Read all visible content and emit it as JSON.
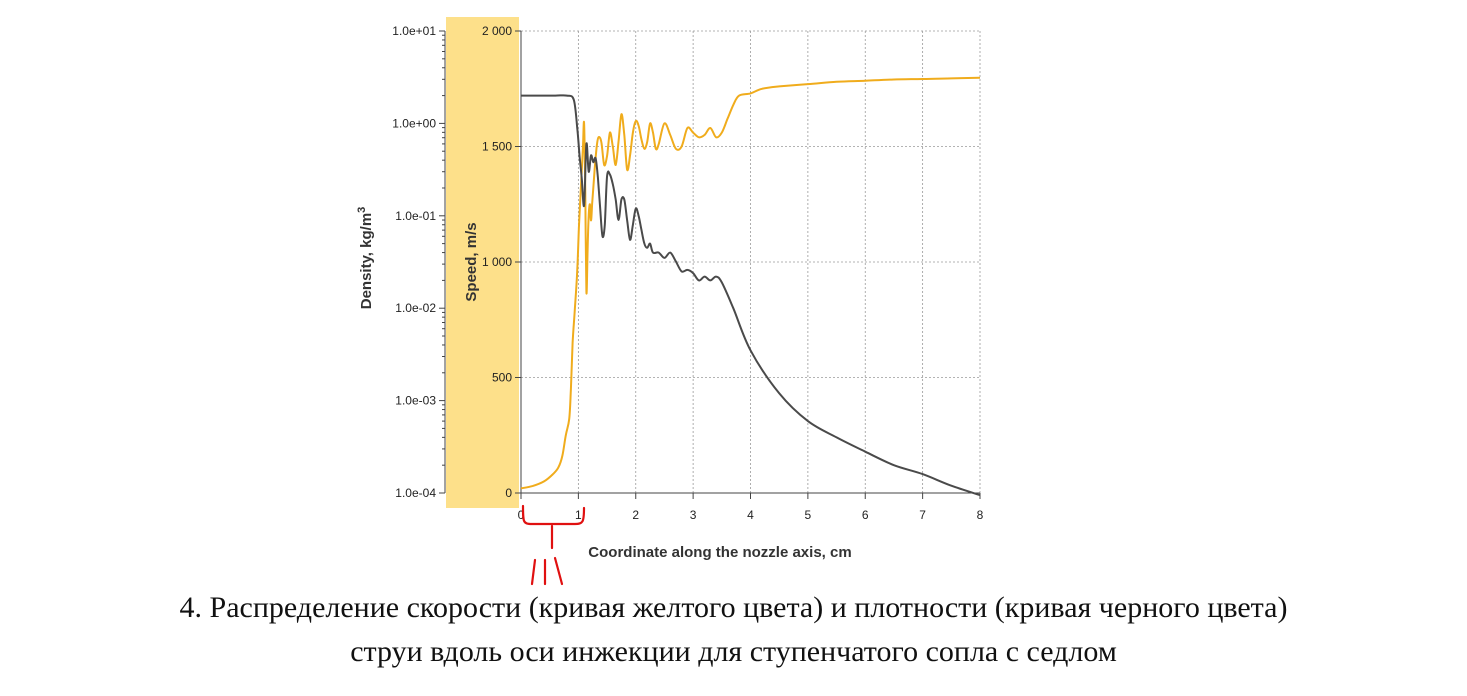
{
  "caption": {
    "line1": "4. Распределение скорости (кривая желтого цвета) и плотности (кривая черного цвета)",
    "line2": "струи вдоль оси инжекции для ступенчатого сопла с седлом"
  },
  "colors": {
    "speed": "#f0ac1c",
    "density": "#4a4a4a",
    "highlight": "#fde08a",
    "annotation": "#e01010"
  },
  "chart_data": {
    "type": "line",
    "title": "",
    "xlabel": "Coordinate along the nozzle axis, cm",
    "ylabel_left": "Density, kg/m³",
    "ylabel_right": "Speed, m/s",
    "xlim": [
      0,
      8
    ],
    "ylim_left": [
      0.0001,
      10
    ],
    "ylim_right": [
      0,
      2000
    ],
    "left_scale": "log",
    "x_ticks": [
      "0",
      "1",
      "2",
      "3",
      "4",
      "5",
      "6",
      "7",
      "8"
    ],
    "left_ticks": [
      "1.0e+01",
      "1.0e+00",
      "1.0e-01",
      "1.0e-02",
      "1.0e-03",
      "1.0e-04"
    ],
    "right_ticks": [
      "2 000",
      "1 500",
      "1 000",
      "500",
      "0"
    ],
    "grid": true,
    "series": [
      {
        "name": "",
        "axis": "right",
        "x": [
          0,
          0.2,
          0.4,
          0.55,
          0.65,
          0.72,
          0.78,
          0.84,
          0.87,
          0.9,
          0.94,
          0.98,
          1.01,
          1.05,
          1.08,
          1.1,
          1.12,
          1.14,
          1.16,
          1.18,
          1.2,
          1.22,
          1.24,
          1.26,
          1.29,
          1.32,
          1.35,
          1.4,
          1.45,
          1.5,
          1.55,
          1.6,
          1.65,
          1.7,
          1.75,
          1.8,
          1.85,
          1.9,
          1.95,
          2.0,
          2.05,
          2.1,
          2.15,
          2.2,
          2.25,
          2.3,
          2.35,
          2.4,
          2.5,
          2.6,
          2.7,
          2.8,
          2.9,
          3.0,
          3.1,
          3.2,
          3.3,
          3.4,
          3.5,
          3.6,
          3.7,
          3.8,
          4.0,
          4.2,
          4.5,
          5.0,
          5.5,
          6.0,
          6.5,
          7.0,
          7.5,
          8.0
        ],
        "y": [
          20,
          30,
          50,
          80,
          110,
          160,
          250,
          320,
          450,
          650,
          800,
          960,
          1150,
          1350,
          1500,
          1600,
          1300,
          870,
          1050,
          1200,
          1250,
          1180,
          1250,
          1320,
          1420,
          1500,
          1540,
          1520,
          1420,
          1460,
          1560,
          1500,
          1420,
          1520,
          1640,
          1550,
          1400,
          1460,
          1560,
          1610,
          1590,
          1530,
          1490,
          1520,
          1600,
          1560,
          1490,
          1510,
          1600,
          1550,
          1490,
          1500,
          1580,
          1560,
          1540,
          1550,
          1580,
          1540,
          1560,
          1620,
          1680,
          1720,
          1730,
          1750,
          1760,
          1770,
          1780,
          1785,
          1790,
          1792,
          1795,
          1798
        ]
      },
      {
        "name": "",
        "axis": "left",
        "x": [
          0,
          0.3,
          0.6,
          0.8,
          0.92,
          0.98,
          1.02,
          1.06,
          1.1,
          1.14,
          1.18,
          1.22,
          1.26,
          1.3,
          1.34,
          1.38,
          1.42,
          1.46,
          1.5,
          1.55,
          1.6,
          1.65,
          1.7,
          1.75,
          1.8,
          1.85,
          1.9,
          1.95,
          2.0,
          2.05,
          2.1,
          2.15,
          2.2,
          2.25,
          2.3,
          2.4,
          2.5,
          2.6,
          2.7,
          2.8,
          2.9,
          3.0,
          3.1,
          3.2,
          3.3,
          3.4,
          3.5,
          3.7,
          4.0,
          4.5,
          5.0,
          5.5,
          6.0,
          6.5,
          7.0,
          7.5,
          8.0
        ],
        "y": [
          2.0,
          2.0,
          2.0,
          2.0,
          1.8,
          0.9,
          0.45,
          0.25,
          0.13,
          0.6,
          0.3,
          0.45,
          0.38,
          0.42,
          0.26,
          0.12,
          0.06,
          0.08,
          0.27,
          0.28,
          0.22,
          0.15,
          0.09,
          0.15,
          0.15,
          0.09,
          0.055,
          0.08,
          0.12,
          0.1,
          0.07,
          0.05,
          0.045,
          0.05,
          0.04,
          0.04,
          0.035,
          0.04,
          0.032,
          0.025,
          0.026,
          0.024,
          0.02,
          0.022,
          0.02,
          0.022,
          0.019,
          0.01,
          0.0035,
          0.0012,
          0.0006,
          0.0004,
          0.00028,
          0.0002,
          0.00016,
          0.00012,
          9.5e-05
        ]
      }
    ]
  }
}
